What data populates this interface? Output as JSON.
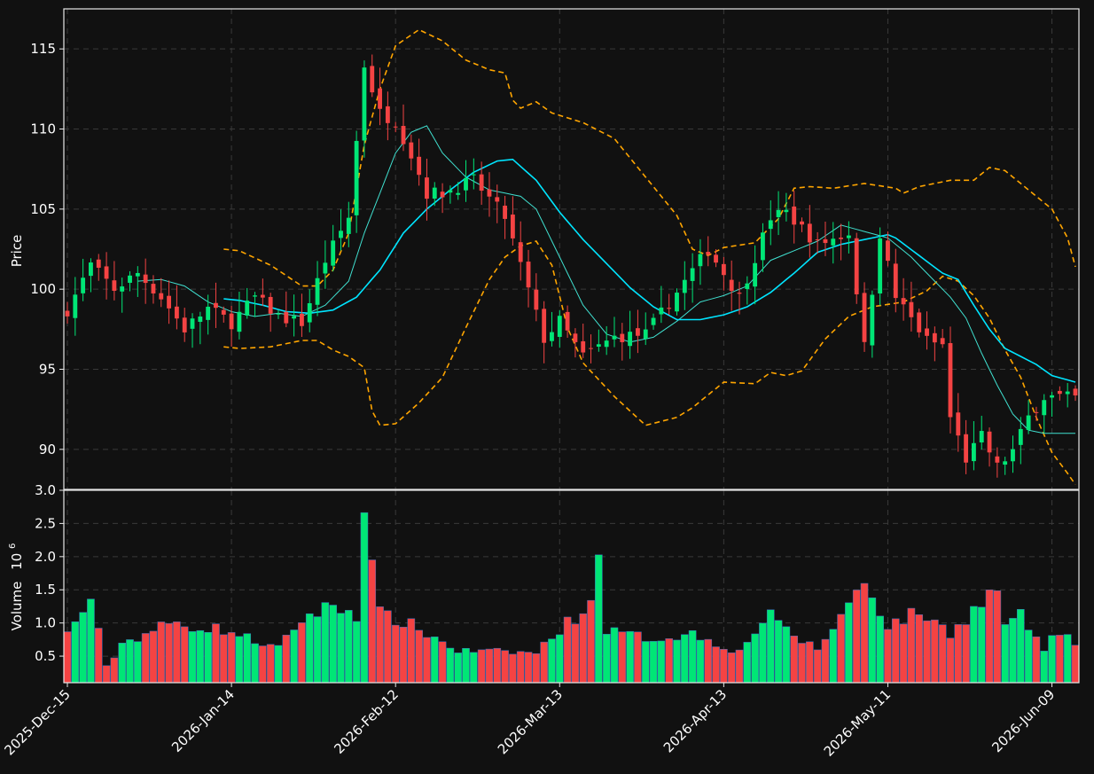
{
  "chart_data": {
    "type": "candlestick",
    "title": "",
    "colors": {
      "background": "#111111",
      "up": "#00e676",
      "down": "#f44343",
      "bollinger": "#ffa500",
      "ma_fast": "#40e0d0",
      "ma_slow": "#00e5ff",
      "grid": "#3a3a3a"
    },
    "price_panel": {
      "ylabel": "Price",
      "ylim": [
        87.5,
        117.5
      ],
      "yticks": [
        90,
        95,
        100,
        105,
        110,
        115
      ],
      "grid": true
    },
    "volume_panel": {
      "ylabel": "Volume",
      "ylabel_exponent": "10",
      "ylabel_exponent_power": "6",
      "ylim": [
        0.1,
        3.0
      ],
      "yticks": [
        0.5,
        1.0,
        1.5,
        2.0,
        2.5,
        3.0
      ],
      "ytick_labels": [
        "0.5",
        "1.0",
        "1.5",
        "2.0",
        "2.5",
        "3.0"
      ],
      "grid": true
    },
    "xtick_labels": [
      "2025-Dec-15",
      "2026-Jan-14",
      "2026-Feb-12",
      "2026-Mar-13",
      "2026-Apr-13",
      "2026-May-11",
      "2026-Jun-09"
    ],
    "xtick_bar_index": [
      0,
      21,
      42,
      63,
      84,
      105,
      126
    ],
    "bar_count": 130,
    "close_anchors": [
      [
        0,
        98.7
      ],
      [
        3,
        101.5
      ],
      [
        6,
        100.0
      ],
      [
        9,
        101.0
      ],
      [
        12,
        99.5
      ],
      [
        15,
        97.5
      ],
      [
        18,
        98.8
      ],
      [
        21,
        97.9
      ],
      [
        24,
        99.5
      ],
      [
        27,
        98.3
      ],
      [
        30,
        97.9
      ],
      [
        33,
        101.8
      ],
      [
        36,
        104.5
      ],
      [
        38,
        114.0
      ],
      [
        40,
        111.0
      ],
      [
        42,
        110.5
      ],
      [
        44,
        108.4
      ],
      [
        46,
        106.0
      ],
      [
        48,
        106.0
      ],
      [
        52,
        106.8
      ],
      [
        56,
        104.5
      ],
      [
        61,
        96.9
      ],
      [
        63,
        98.0
      ],
      [
        66,
        95.8
      ],
      [
        70,
        97.0
      ],
      [
        74,
        97.2
      ],
      [
        78,
        99.8
      ],
      [
        82,
        102.5
      ],
      [
        86,
        99.5
      ],
      [
        90,
        104.5
      ],
      [
        92,
        104.8
      ],
      [
        96,
        102.8
      ],
      [
        100,
        103.5
      ],
      [
        102,
        96.4
      ],
      [
        104,
        103.5
      ],
      [
        106,
        99.5
      ],
      [
        110,
        96.8
      ],
      [
        112,
        96.5
      ],
      [
        113,
        92.0
      ],
      [
        115,
        89.4
      ],
      [
        117,
        90.8
      ],
      [
        119,
        88.9
      ],
      [
        121,
        89.9
      ],
      [
        123,
        92.0
      ],
      [
        125,
        93.3
      ],
      [
        129,
        93.2
      ]
    ],
    "volume_anchors": [
      [
        0,
        0.83
      ],
      [
        3,
        1.37
      ],
      [
        5,
        0.33
      ],
      [
        7,
        0.69
      ],
      [
        13,
        0.99
      ],
      [
        20,
        0.9
      ],
      [
        27,
        0.61
      ],
      [
        30,
        1.06
      ],
      [
        34,
        1.27
      ],
      [
        37,
        1.13
      ],
      [
        38,
        2.78
      ],
      [
        39,
        1.85
      ],
      [
        40,
        1.14
      ],
      [
        44,
        0.97
      ],
      [
        50,
        0.58
      ],
      [
        60,
        0.55
      ],
      [
        63,
        0.91
      ],
      [
        67,
        1.27
      ],
      [
        68,
        2.23
      ],
      [
        69,
        0.88
      ],
      [
        75,
        0.76
      ],
      [
        80,
        0.84
      ],
      [
        86,
        0.56
      ],
      [
        90,
        1.2
      ],
      [
        91,
        0.95
      ],
      [
        96,
        0.6
      ],
      [
        102,
        1.63
      ],
      [
        104,
        1.2
      ],
      [
        105,
        0.96
      ],
      [
        109,
        1.17
      ],
      [
        113,
        0.85
      ],
      [
        118,
        1.42
      ],
      [
        119,
        1.51
      ],
      [
        120,
        0.99
      ],
      [
        122,
        1.1
      ],
      [
        125,
        0.6
      ],
      [
        127,
        0.9
      ],
      [
        129,
        0.65
      ]
    ],
    "bollinger_upper": [
      [
        20,
        102.5
      ],
      [
        22,
        102.4
      ],
      [
        26,
        101.5
      ],
      [
        30,
        100.2
      ],
      [
        32,
        100.2
      ],
      [
        34,
        101.2
      ],
      [
        36,
        103.5
      ],
      [
        38,
        109.0
      ],
      [
        40,
        112.5
      ],
      [
        42,
        115.2
      ],
      [
        45,
        116.2
      ],
      [
        48,
        115.5
      ],
      [
        51,
        114.3
      ],
      [
        54,
        113.7
      ],
      [
        56,
        113.5
      ],
      [
        57,
        111.8
      ],
      [
        58,
        111.3
      ],
      [
        60,
        111.7
      ],
      [
        62,
        111.0
      ],
      [
        66,
        110.4
      ],
      [
        70,
        109.4
      ],
      [
        74,
        107.0
      ],
      [
        78,
        104.6
      ],
      [
        80,
        102.5
      ],
      [
        82,
        102.1
      ],
      [
        84,
        102.6
      ],
      [
        88,
        102.9
      ],
      [
        91,
        104.4
      ],
      [
        93,
        106.3
      ],
      [
        95,
        106.4
      ],
      [
        98,
        106.3
      ],
      [
        102,
        106.6
      ],
      [
        106,
        106.3
      ],
      [
        107,
        106.0
      ],
      [
        109,
        106.4
      ],
      [
        111,
        106.6
      ],
      [
        113,
        106.8
      ],
      [
        116,
        106.8
      ],
      [
        118,
        107.6
      ],
      [
        120,
        107.4
      ],
      [
        123,
        106.2
      ],
      [
        126,
        105.0
      ],
      [
        128,
        103.2
      ],
      [
        129,
        101.4
      ]
    ],
    "bollinger_lower": [
      [
        20,
        96.4
      ],
      [
        22,
        96.3
      ],
      [
        26,
        96.4
      ],
      [
        30,
        96.8
      ],
      [
        32,
        96.8
      ],
      [
        34,
        96.2
      ],
      [
        36,
        95.8
      ],
      [
        38,
        95.1
      ],
      [
        39,
        92.4
      ],
      [
        40,
        91.5
      ],
      [
        42,
        91.6
      ],
      [
        45,
        92.9
      ],
      [
        48,
        94.5
      ],
      [
        51,
        97.6
      ],
      [
        54,
        100.6
      ],
      [
        56,
        102.0
      ],
      [
        58,
        102.7
      ],
      [
        60,
        103.0
      ],
      [
        62,
        101.5
      ],
      [
        64,
        97.6
      ],
      [
        66,
        95.4
      ],
      [
        70,
        93.3
      ],
      [
        74,
        91.5
      ],
      [
        78,
        92.0
      ],
      [
        80,
        92.6
      ],
      [
        84,
        94.2
      ],
      [
        88,
        94.1
      ],
      [
        90,
        94.8
      ],
      [
        92,
        94.6
      ],
      [
        94,
        94.9
      ],
      [
        97,
        96.9
      ],
      [
        100,
        98.3
      ],
      [
        103,
        98.9
      ],
      [
        107,
        99.2
      ],
      [
        110,
        99.9
      ],
      [
        112,
        100.8
      ],
      [
        114,
        100.5
      ],
      [
        116,
        99.6
      ],
      [
        118,
        98.2
      ],
      [
        120,
        96.2
      ],
      [
        122,
        94.5
      ],
      [
        124,
        92.0
      ],
      [
        126,
        89.8
      ],
      [
        128,
        88.5
      ],
      [
        129,
        87.8
      ]
    ],
    "ma_fast": [
      [
        9,
        100.5
      ],
      [
        12,
        100.6
      ],
      [
        15,
        100.2
      ],
      [
        18,
        99.2
      ],
      [
        21,
        98.6
      ],
      [
        24,
        98.3
      ],
      [
        27,
        98.5
      ],
      [
        30,
        98.3
      ],
      [
        33,
        99.0
      ],
      [
        36,
        100.5
      ],
      [
        38,
        103.5
      ],
      [
        40,
        106.0
      ],
      [
        42,
        108.5
      ],
      [
        44,
        109.8
      ],
      [
        46,
        110.2
      ],
      [
        48,
        108.5
      ],
      [
        51,
        107.0
      ],
      [
        54,
        106.2
      ],
      [
        56,
        106.0
      ],
      [
        58,
        105.8
      ],
      [
        60,
        105.0
      ],
      [
        63,
        102.0
      ],
      [
        66,
        99.0
      ],
      [
        69,
        97.2
      ],
      [
        72,
        96.7
      ],
      [
        75,
        97.0
      ],
      [
        78,
        98.0
      ],
      [
        81,
        99.2
      ],
      [
        84,
        99.6
      ],
      [
        87,
        100.2
      ],
      [
        90,
        101.8
      ],
      [
        93,
        102.4
      ],
      [
        96,
        103.0
      ],
      [
        99,
        104.0
      ],
      [
        102,
        103.6
      ],
      [
        105,
        103.2
      ],
      [
        108,
        102.0
      ],
      [
        111,
        100.5
      ],
      [
        113,
        99.5
      ],
      [
        115,
        98.2
      ],
      [
        117,
        96.0
      ],
      [
        119,
        94.0
      ],
      [
        121,
        92.2
      ],
      [
        123,
        91.2
      ],
      [
        125,
        91.0
      ],
      [
        127,
        91.0
      ],
      [
        129,
        91.0
      ]
    ],
    "ma_slow": [
      [
        20,
        99.4
      ],
      [
        22,
        99.3
      ],
      [
        25,
        99.0
      ],
      [
        28,
        98.6
      ],
      [
        31,
        98.5
      ],
      [
        34,
        98.7
      ],
      [
        37,
        99.5
      ],
      [
        40,
        101.2
      ],
      [
        43,
        103.5
      ],
      [
        46,
        105.0
      ],
      [
        49,
        106.2
      ],
      [
        52,
        107.3
      ],
      [
        55,
        108.0
      ],
      [
        57,
        108.1
      ],
      [
        60,
        106.8
      ],
      [
        63,
        104.8
      ],
      [
        66,
        103.1
      ],
      [
        69,
        101.6
      ],
      [
        72,
        100.1
      ],
      [
        75,
        98.9
      ],
      [
        78,
        98.1
      ],
      [
        81,
        98.1
      ],
      [
        84,
        98.4
      ],
      [
        87,
        98.9
      ],
      [
        90,
        99.8
      ],
      [
        93,
        101.0
      ],
      [
        96,
        102.3
      ],
      [
        99,
        102.8
      ],
      [
        102,
        103.1
      ],
      [
        105,
        103.4
      ],
      [
        106,
        103.2
      ],
      [
        109,
        102.1
      ],
      [
        112,
        101.0
      ],
      [
        114,
        100.6
      ],
      [
        116,
        99.0
      ],
      [
        118,
        97.5
      ],
      [
        120,
        96.3
      ],
      [
        122,
        95.8
      ],
      [
        124,
        95.3
      ],
      [
        126,
        94.6
      ],
      [
        129,
        94.2
      ]
    ]
  }
}
